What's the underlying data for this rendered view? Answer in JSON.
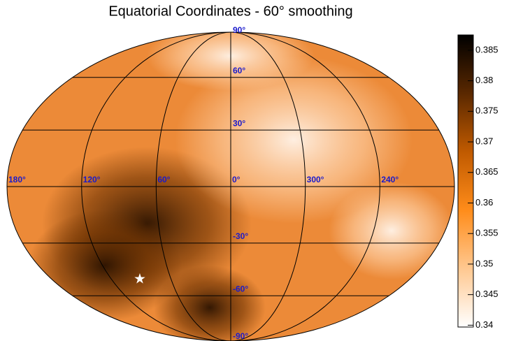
{
  "chart_data": {
    "type": "skymap",
    "title": "Equatorial Coordinates - 60° smoothing",
    "lon_ticks": [
      {
        "value": 180,
        "label": "180°"
      },
      {
        "value": 120,
        "label": "120°"
      },
      {
        "value": 60,
        "label": "60°"
      },
      {
        "value": 0,
        "label": "0°"
      },
      {
        "value": 300,
        "label": "300°"
      },
      {
        "value": 240,
        "label": "240°"
      }
    ],
    "lat_ticks": [
      {
        "value": 90,
        "label": "90°"
      },
      {
        "value": 60,
        "label": "60°"
      },
      {
        "value": 30,
        "label": "30°"
      },
      {
        "value": -30,
        "label": "-30°"
      },
      {
        "value": -60,
        "label": "-60°"
      },
      {
        "value": -90,
        "label": "-90°"
      }
    ],
    "colorbar": {
      "lim": [
        0.3397,
        0.3875
      ],
      "ticks": [
        0.34,
        0.345,
        0.35,
        0.355,
        0.36,
        0.365,
        0.37,
        0.375,
        0.38,
        0.385
      ],
      "colors": [
        "#ffffff",
        "#ffc890",
        "#ff8c1a",
        "#c05a00",
        "#5a2800",
        "#000000"
      ]
    }
  }
}
